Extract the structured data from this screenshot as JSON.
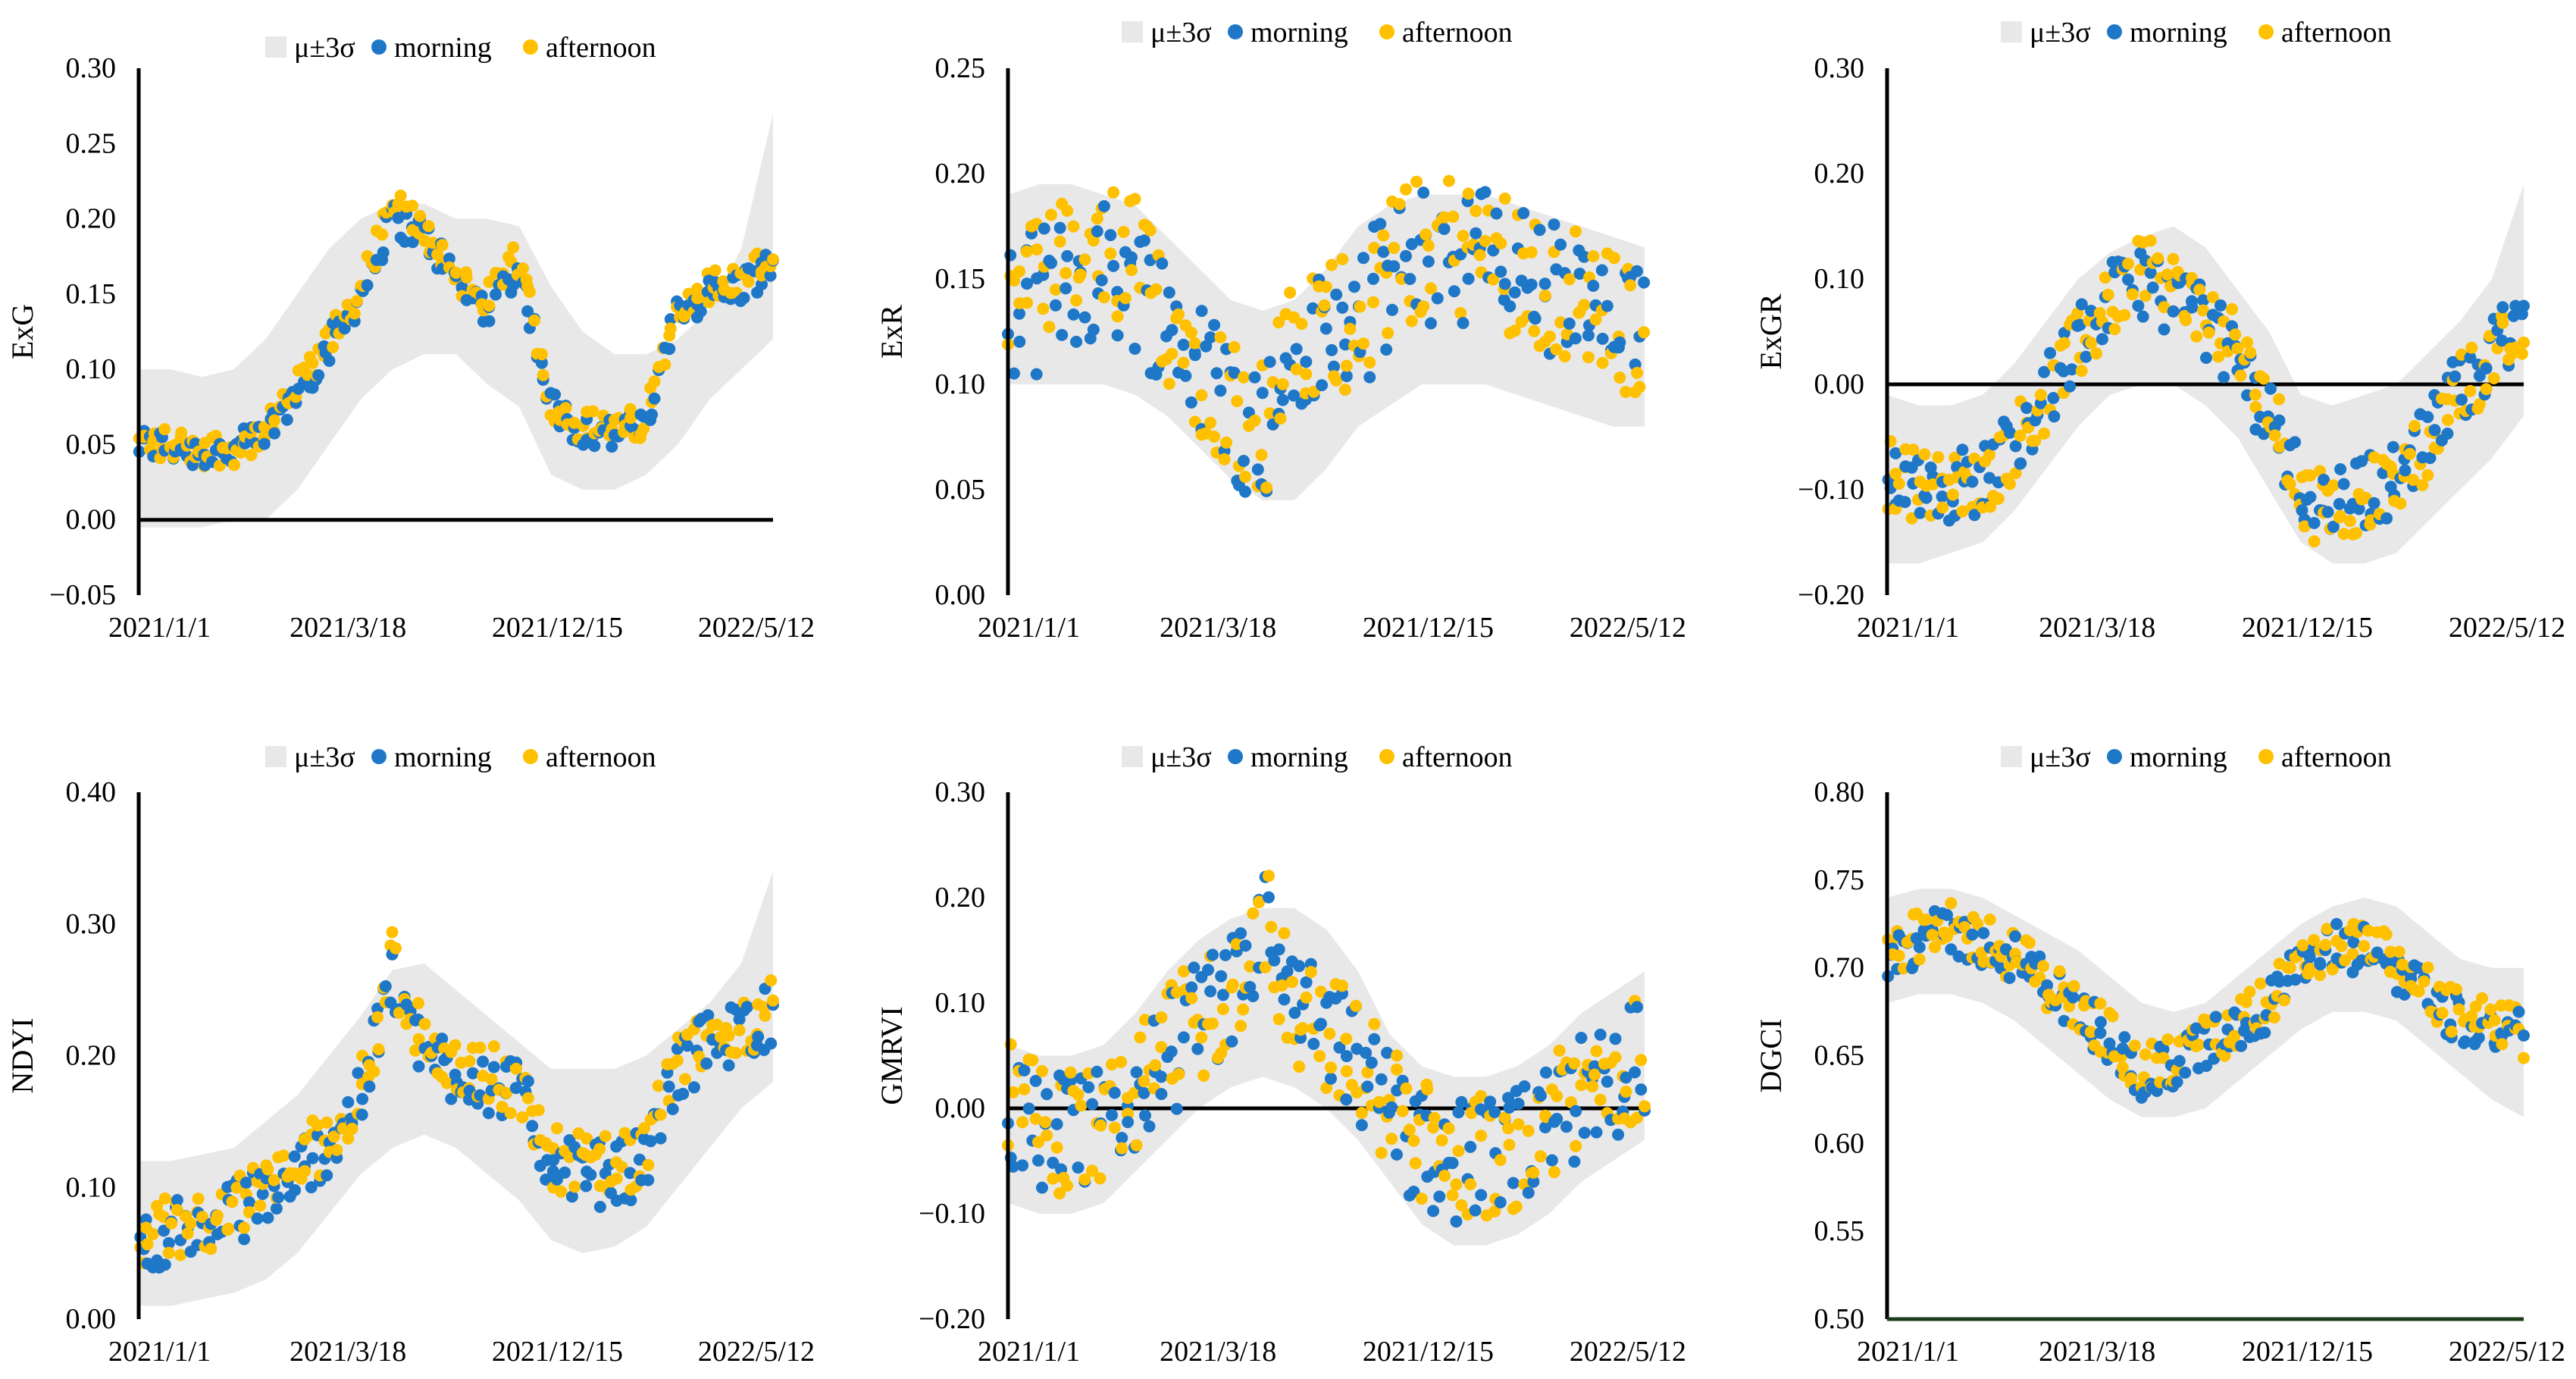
{
  "chart_data": [
    {
      "type": "scatter",
      "ylabel": "ExG",
      "ylim": [
        -0.05,
        0.3
      ],
      "ytick_step": 0.05,
      "y_decimals": 2,
      "xtick_labels": [
        "2021/1/1",
        "2021/3/18",
        "2021/12/15",
        "2022/5/12"
      ],
      "legend": {
        "band": "μ±3σ",
        "morning": "morning",
        "afternoon": "afternoon"
      },
      "x": [
        0,
        0.05,
        0.1,
        0.15,
        0.2,
        0.25,
        0.3,
        0.35,
        0.4,
        0.45,
        0.5,
        0.55,
        0.6,
        0.65,
        0.7,
        0.75,
        0.8,
        0.85,
        0.9,
        0.95,
        1
      ],
      "band_upper": [
        0.1,
        0.1,
        0.095,
        0.1,
        0.12,
        0.15,
        0.18,
        0.2,
        0.21,
        0.21,
        0.2,
        0.2,
        0.195,
        0.155,
        0.125,
        0.11,
        0.11,
        0.12,
        0.14,
        0.18,
        0.27
      ],
      "band_lower": [
        -0.005,
        -0.005,
        -0.005,
        0.0,
        0.0,
        0.02,
        0.05,
        0.08,
        0.1,
        0.11,
        0.11,
        0.09,
        0.075,
        0.03,
        0.02,
        0.02,
        0.03,
        0.05,
        0.08,
        0.1,
        0.12
      ],
      "morning_mean": [
        0.05,
        0.049,
        0.045,
        0.046,
        0.055,
        0.085,
        0.115,
        0.15,
        0.2,
        0.19,
        0.16,
        0.14,
        0.17,
        0.075,
        0.06,
        0.057,
        0.063,
        0.14,
        0.15,
        0.155,
        0.17
      ],
      "afternoon_mean": [
        0.051,
        0.05,
        0.047,
        0.048,
        0.057,
        0.087,
        0.117,
        0.153,
        0.21,
        0.193,
        0.163,
        0.145,
        0.175,
        0.078,
        0.062,
        0.059,
        0.066,
        0.145,
        0.155,
        0.16,
        0.175
      ],
      "scatter_spread": 0.012,
      "zero_line": true
    },
    {
      "type": "scatter",
      "ylabel": "ExR",
      "ylim": [
        0.0,
        0.25
      ],
      "ytick_step": 0.05,
      "y_decimals": 2,
      "xtick_labels": [
        "2021/1/1",
        "2021/3/18",
        "2021/12/15",
        "2022/5/12"
      ],
      "legend": {
        "band": "μ±3σ",
        "morning": "morning",
        "afternoon": "afternoon"
      },
      "x": [
        0,
        0.05,
        0.1,
        0.15,
        0.2,
        0.25,
        0.3,
        0.35,
        0.4,
        0.45,
        0.5,
        0.55,
        0.6,
        0.65,
        0.7,
        0.75,
        0.8,
        0.85,
        0.9,
        0.95,
        1
      ],
      "band_upper": [
        0.19,
        0.195,
        0.195,
        0.19,
        0.185,
        0.17,
        0.155,
        0.14,
        0.135,
        0.14,
        0.155,
        0.175,
        0.185,
        0.19,
        0.19,
        0.19,
        0.185,
        0.18,
        0.175,
        0.17,
        0.165
      ],
      "band_lower": [
        0.1,
        0.1,
        0.1,
        0.1,
        0.095,
        0.085,
        0.07,
        0.055,
        0.045,
        0.045,
        0.06,
        0.08,
        0.09,
        0.1,
        0.1,
        0.1,
        0.095,
        0.09,
        0.085,
        0.08,
        0.08
      ],
      "morning_mean": [
        0.13,
        0.14,
        0.15,
        0.155,
        0.15,
        0.13,
        0.11,
        0.09,
        0.075,
        0.11,
        0.12,
        0.13,
        0.15,
        0.16,
        0.165,
        0.16,
        0.155,
        0.145,
        0.135,
        0.125,
        0.12
      ],
      "afternoon_mean": [
        0.135,
        0.145,
        0.155,
        0.16,
        0.155,
        0.135,
        0.112,
        0.092,
        0.08,
        0.115,
        0.125,
        0.135,
        0.155,
        0.165,
        0.168,
        0.163,
        0.158,
        0.148,
        0.138,
        0.128,
        0.123
      ],
      "scatter_spread": 0.035,
      "zero_line": false
    },
    {
      "type": "scatter",
      "ylabel": "ExGR",
      "ylim": [
        -0.2,
        0.3
      ],
      "ytick_step": 0.1,
      "y_decimals": 2,
      "xtick_labels": [
        "2021/1/1",
        "2021/3/18",
        "2021/12/15",
        "2022/5/12"
      ],
      "legend": {
        "band": "μ±3σ",
        "morning": "morning",
        "afternoon": "afternoon"
      },
      "x": [
        0,
        0.05,
        0.1,
        0.15,
        0.2,
        0.25,
        0.3,
        0.35,
        0.4,
        0.45,
        0.5,
        0.55,
        0.6,
        0.65,
        0.7,
        0.75,
        0.8,
        0.85,
        0.9,
        0.95,
        1
      ],
      "band_upper": [
        -0.01,
        -0.02,
        -0.02,
        -0.01,
        0.02,
        0.06,
        0.1,
        0.125,
        0.14,
        0.15,
        0.13,
        0.09,
        0.05,
        -0.01,
        -0.02,
        -0.01,
        0.0,
        0.03,
        0.06,
        0.1,
        0.19
      ],
      "band_lower": [
        -0.17,
        -0.17,
        -0.16,
        -0.15,
        -0.12,
        -0.08,
        -0.04,
        -0.01,
        0.0,
        0.0,
        -0.02,
        -0.05,
        -0.1,
        -0.15,
        -0.17,
        -0.17,
        -0.16,
        -0.13,
        -0.1,
        -0.07,
        -0.03
      ],
      "morning_mean": [
        -0.08,
        -0.09,
        -0.095,
        -0.09,
        -0.05,
        -0.01,
        0.04,
        0.08,
        0.1,
        0.08,
        0.06,
        0.02,
        -0.03,
        -0.1,
        -0.11,
        -0.1,
        -0.09,
        -0.05,
        0.0,
        0.03,
        0.06
      ],
      "afternoon_mean": [
        -0.085,
        -0.095,
        -0.1,
        -0.095,
        -0.055,
        -0.012,
        0.035,
        0.075,
        0.12,
        0.09,
        0.07,
        0.03,
        -0.02,
        -0.11,
        -0.12,
        -0.105,
        -0.095,
        -0.055,
        -0.005,
        0.025,
        0.055
      ],
      "scatter_spread": 0.035,
      "zero_line": true
    },
    {
      "type": "scatter",
      "ylabel": "NDYI",
      "ylim": [
        0.0,
        0.4
      ],
      "ytick_step": 0.1,
      "y_decimals": 2,
      "xtick_labels": [
        "2021/1/1",
        "2021/3/18",
        "2021/12/15",
        "2022/5/12"
      ],
      "legend": {
        "band": "μ±3σ",
        "morning": "morning",
        "afternoon": "afternoon"
      },
      "x": [
        0,
        0.05,
        0.1,
        0.15,
        0.2,
        0.25,
        0.3,
        0.35,
        0.4,
        0.45,
        0.5,
        0.55,
        0.6,
        0.65,
        0.7,
        0.75,
        0.8,
        0.85,
        0.9,
        0.95,
        1
      ],
      "band_upper": [
        0.12,
        0.12,
        0.125,
        0.13,
        0.15,
        0.17,
        0.2,
        0.23,
        0.265,
        0.27,
        0.25,
        0.23,
        0.21,
        0.19,
        0.19,
        0.19,
        0.2,
        0.22,
        0.24,
        0.27,
        0.34
      ],
      "band_lower": [
        0.01,
        0.01,
        0.015,
        0.02,
        0.03,
        0.05,
        0.08,
        0.11,
        0.13,
        0.14,
        0.13,
        0.11,
        0.09,
        0.06,
        0.05,
        0.055,
        0.07,
        0.1,
        0.13,
        0.16,
        0.18
      ],
      "morning_mean": [
        0.06,
        0.065,
        0.07,
        0.08,
        0.095,
        0.11,
        0.135,
        0.165,
        0.26,
        0.2,
        0.19,
        0.18,
        0.17,
        0.12,
        0.11,
        0.11,
        0.12,
        0.19,
        0.21,
        0.22,
        0.23
      ],
      "afternoon_mean": [
        0.065,
        0.07,
        0.075,
        0.085,
        0.1,
        0.115,
        0.14,
        0.17,
        0.27,
        0.205,
        0.195,
        0.185,
        0.175,
        0.125,
        0.115,
        0.115,
        0.125,
        0.195,
        0.215,
        0.225,
        0.235
      ],
      "scatter_spread": 0.025,
      "zero_line": false
    },
    {
      "type": "scatter",
      "ylabel": "GMRVI",
      "ylim": [
        -0.2,
        0.3
      ],
      "ytick_step": 0.1,
      "y_decimals": 2,
      "xtick_labels": [
        "2021/1/1",
        "2021/3/18",
        "2021/12/15",
        "2022/5/12"
      ],
      "legend": {
        "band": "μ±3σ",
        "morning": "morning",
        "afternoon": "afternoon"
      },
      "x": [
        0,
        0.05,
        0.1,
        0.15,
        0.2,
        0.25,
        0.3,
        0.35,
        0.4,
        0.45,
        0.5,
        0.55,
        0.6,
        0.65,
        0.7,
        0.75,
        0.8,
        0.85,
        0.9,
        0.95,
        1
      ],
      "band_upper": [
        0.06,
        0.05,
        0.05,
        0.06,
        0.09,
        0.13,
        0.16,
        0.18,
        0.19,
        0.19,
        0.17,
        0.13,
        0.07,
        0.04,
        0.03,
        0.03,
        0.04,
        0.06,
        0.09,
        0.11,
        0.13
      ],
      "band_lower": [
        -0.09,
        -0.1,
        -0.1,
        -0.09,
        -0.06,
        -0.03,
        0.0,
        0.02,
        0.03,
        0.02,
        0.0,
        -0.03,
        -0.07,
        -0.11,
        -0.13,
        -0.13,
        -0.12,
        -0.1,
        -0.07,
        -0.05,
        -0.03
      ],
      "morning_mean": [
        0.0,
        -0.02,
        -0.03,
        -0.02,
        0.01,
        0.05,
        0.08,
        0.1,
        0.18,
        0.09,
        0.07,
        0.04,
        0.0,
        -0.04,
        -0.05,
        -0.05,
        -0.04,
        -0.02,
        0.01,
        0.03,
        0.05
      ],
      "afternoon_mean": [
        0.005,
        -0.015,
        -0.025,
        -0.015,
        0.015,
        0.055,
        0.085,
        0.105,
        0.19,
        0.095,
        0.075,
        0.045,
        0.005,
        -0.035,
        -0.045,
        -0.045,
        -0.035,
        -0.015,
        0.015,
        0.035,
        0.055
      ],
      "scatter_spread": 0.06,
      "zero_line": true
    },
    {
      "type": "scatter",
      "ylabel": "DGCI",
      "ylim": [
        0.5,
        0.8
      ],
      "ytick_step": 0.05,
      "y_decimals": 2,
      "xtick_labels": [
        "2021/1/1",
        "2021/3/18",
        "2021/12/15",
        "2022/5/12"
      ],
      "legend": {
        "band": "μ±3σ",
        "morning": "morning",
        "afternoon": "afternoon"
      },
      "x": [
        0,
        0.05,
        0.1,
        0.15,
        0.2,
        0.25,
        0.3,
        0.35,
        0.4,
        0.45,
        0.5,
        0.55,
        0.6,
        0.65,
        0.7,
        0.75,
        0.8,
        0.85,
        0.9,
        0.95,
        1
      ],
      "band_upper": [
        0.74,
        0.745,
        0.745,
        0.74,
        0.73,
        0.72,
        0.71,
        0.695,
        0.68,
        0.675,
        0.68,
        0.695,
        0.71,
        0.725,
        0.735,
        0.74,
        0.735,
        0.72,
        0.705,
        0.7,
        0.7
      ],
      "band_lower": [
        0.68,
        0.685,
        0.685,
        0.68,
        0.67,
        0.655,
        0.64,
        0.625,
        0.615,
        0.615,
        0.62,
        0.635,
        0.65,
        0.665,
        0.675,
        0.675,
        0.67,
        0.655,
        0.64,
        0.625,
        0.615
      ],
      "morning_mean": [
        0.71,
        0.715,
        0.72,
        0.715,
        0.705,
        0.69,
        0.675,
        0.66,
        0.635,
        0.645,
        0.655,
        0.665,
        0.68,
        0.7,
        0.71,
        0.71,
        0.7,
        0.685,
        0.67,
        0.665,
        0.66
      ],
      "afternoon_mean": [
        0.712,
        0.717,
        0.722,
        0.717,
        0.707,
        0.692,
        0.677,
        0.662,
        0.64,
        0.647,
        0.657,
        0.667,
        0.682,
        0.702,
        0.712,
        0.712,
        0.702,
        0.687,
        0.672,
        0.667,
        0.662
      ],
      "scatter_spread": 0.015,
      "zero_line": false
    }
  ],
  "colors": {
    "band": "#e8e8e8",
    "morning": "#1f77c8",
    "afternoon": "#ffc000",
    "axis": "#000000",
    "text": "#000000"
  }
}
